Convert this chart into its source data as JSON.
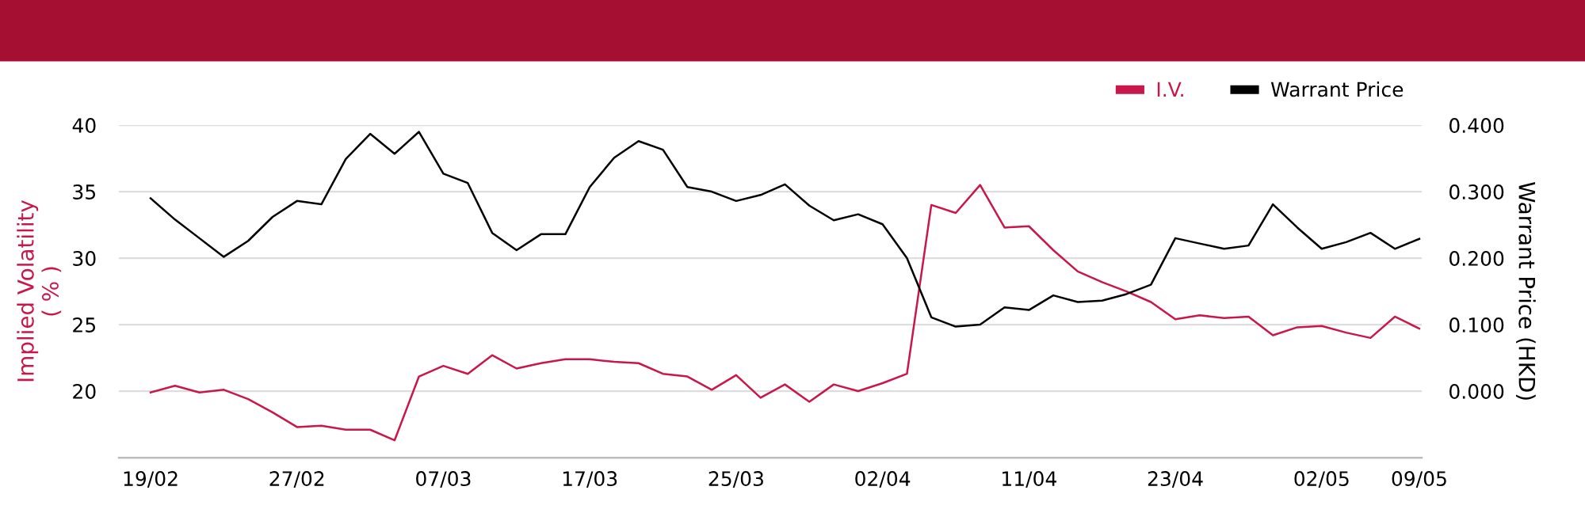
{
  "chart_data": {
    "type": "line",
    "categories": [
      "19/02",
      null,
      null,
      null,
      null,
      null,
      "27/02",
      null,
      null,
      null,
      null,
      null,
      "07/03",
      null,
      null,
      null,
      null,
      null,
      "17/03",
      null,
      null,
      null,
      null,
      null,
      "25/03",
      null,
      null,
      null,
      null,
      null,
      "02/04",
      null,
      null,
      null,
      null,
      null,
      "11/04",
      null,
      null,
      null,
      null,
      null,
      "23/04",
      null,
      null,
      null,
      null,
      null,
      "02/05",
      null,
      null,
      null,
      "09/05"
    ],
    "series": [
      {
        "name": "I.V.",
        "color": "#c8174a",
        "axis": "y",
        "values": [
          19.9,
          20.4,
          19.9,
          20.1,
          19.4,
          18.4,
          17.3,
          17.4,
          17.1,
          17.1,
          16.3,
          21.1,
          21.9,
          21.3,
          22.7,
          21.7,
          22.1,
          22.4,
          22.4,
          22.2,
          22.1,
          21.3,
          21.1,
          20.1,
          21.2,
          19.5,
          20.5,
          19.2,
          20.5,
          20.0,
          20.6,
          21.3,
          34.0,
          33.4,
          35.5,
          32.3,
          32.4,
          30.6,
          29.0,
          28.2,
          27.5,
          26.7,
          25.4,
          25.7,
          25.5,
          25.6,
          24.2,
          24.8,
          24.9,
          24.4,
          24.0,
          25.6,
          24.7
        ]
      },
      {
        "name": "Warrant Price",
        "color": "#000000",
        "axis": "y2",
        "values": [
          0.29,
          0.258,
          0.23,
          0.202,
          0.226,
          0.262,
          0.286,
          0.281,
          0.349,
          0.387,
          0.357,
          0.39,
          0.327,
          0.313,
          0.238,
          0.212,
          0.236,
          0.236,
          0.307,
          0.351,
          0.376,
          0.363,
          0.307,
          0.3,
          0.286,
          0.295,
          0.311,
          0.279,
          0.257,
          0.266,
          0.251,
          0.2,
          0.111,
          0.097,
          0.1,
          0.126,
          0.122,
          0.144,
          0.134,
          0.136,
          0.146,
          0.16,
          0.23,
          0.222,
          0.214,
          0.219,
          0.281,
          0.246,
          0.214,
          0.224,
          0.238,
          0.214,
          0.229
        ]
      }
    ],
    "ylabel": "Implied Volatility\n( % )",
    "y2label": "Warrant Price (HKD)",
    "ylim": [
      15,
      40
    ],
    "yticks": [
      20,
      25,
      30,
      35,
      40
    ],
    "y2lim": [
      -0.1,
      0.4
    ],
    "y2ticks": [
      {
        "value": 0,
        "label": "0.000"
      },
      {
        "value": 0.1,
        "label": "0.100"
      },
      {
        "value": 0.2,
        "label": "0.200"
      },
      {
        "value": 0.3,
        "label": "0.300"
      },
      {
        "value": 0.4,
        "label": "0.400"
      }
    ],
    "grid": "y",
    "legend": "top right",
    "marker": "none",
    "line_style": "solid"
  }
}
